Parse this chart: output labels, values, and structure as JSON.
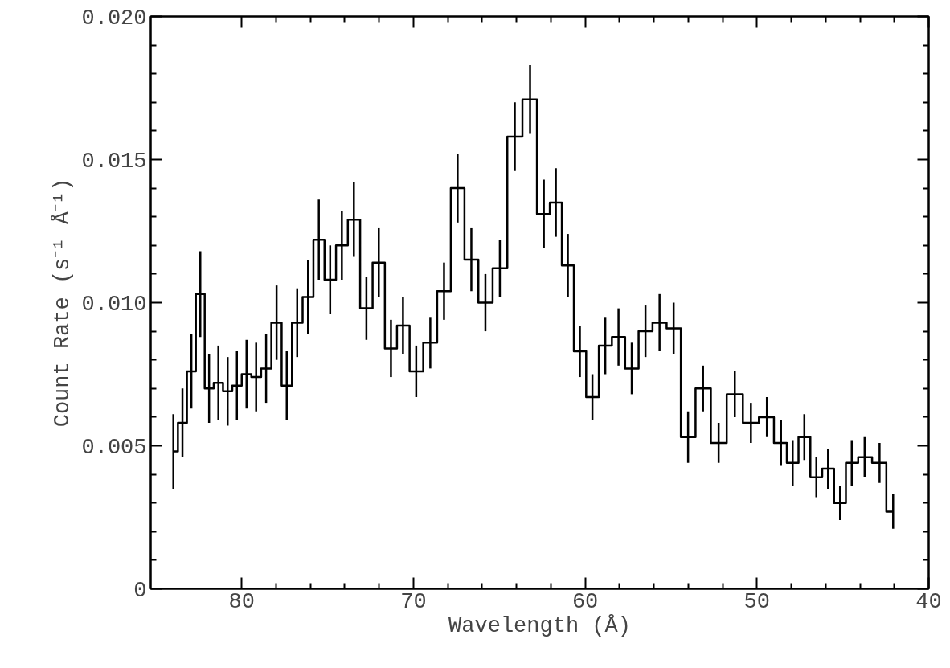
{
  "chart_data": {
    "type": "step",
    "xlabel": "Wavelength (Å)",
    "ylabel": "Count Rate (s⁻¹ Å⁻¹)",
    "x": [
      42.07,
      42.86,
      43.73,
      44.48,
      45.16,
      45.86,
      46.54,
      47.24,
      47.92,
      48.6,
      49.42,
      50.35,
      51.29,
      52.23,
      53.14,
      54.01,
      54.85,
      55.67,
      56.49,
      57.29,
      58.06,
      58.83,
      59.58,
      60.31,
      61.01,
      61.71,
      62.41,
      63.21,
      64.1,
      64.97,
      65.81,
      66.63,
      67.43,
      68.22,
      69.02,
      69.84,
      70.61,
      71.31,
      72.02,
      72.74,
      73.47,
      74.17,
      74.85,
      75.51,
      76.14,
      76.77,
      77.38,
      77.97,
      78.58,
      79.16,
      79.72,
      80.28,
      80.82,
      81.36,
      81.9,
      82.41,
      82.93,
      83.45,
      83.98
    ],
    "values": [
      0.0027,
      0.0044,
      0.0046,
      0.0044,
      0.003,
      0.0042,
      0.0039,
      0.0053,
      0.0044,
      0.0051,
      0.006,
      0.0058,
      0.0068,
      0.0051,
      0.007,
      0.0053,
      0.0091,
      0.0093,
      0.009,
      0.0077,
      0.0088,
      0.0085,
      0.0067,
      0.0083,
      0.0113,
      0.0135,
      0.0131,
      0.0171,
      0.0158,
      0.0112,
      0.01,
      0.0115,
      0.014,
      0.0104,
      0.0086,
      0.0076,
      0.0092,
      0.0084,
      0.0114,
      0.0098,
      0.0129,
      0.012,
      0.0108,
      0.0122,
      0.0102,
      0.0093,
      0.0071,
      0.0093,
      0.0077,
      0.0074,
      0.0075,
      0.0071,
      0.0069,
      0.0072,
      0.007,
      0.0103,
      0.0076,
      0.0058,
      0.0048
    ],
    "errors": [
      0.0006,
      0.0007,
      0.0007,
      0.0008,
      0.0006,
      0.0007,
      0.0007,
      0.0008,
      0.0008,
      0.0008,
      0.0007,
      0.0007,
      0.0008,
      0.0007,
      0.0008,
      0.0009,
      0.0009,
      0.001,
      0.0009,
      0.0009,
      0.001,
      0.001,
      0.0008,
      0.0009,
      0.0011,
      0.0012,
      0.0012,
      0.0012,
      0.0012,
      0.001,
      0.001,
      0.0011,
      0.0012,
      0.001,
      0.0009,
      0.0009,
      0.001,
      0.001,
      0.0012,
      0.0011,
      0.0013,
      0.0012,
      0.0012,
      0.0014,
      0.0013,
      0.0012,
      0.0012,
      0.0013,
      0.0012,
      0.0012,
      0.0012,
      0.0012,
      0.0012,
      0.0013,
      0.0012,
      0.0015,
      0.0013,
      0.0012,
      0.0013
    ],
    "color": "#000000",
    "xlim": [
      85.3,
      40
    ],
    "ylim": [
      0,
      0.02
    ],
    "xticks": [
      80,
      70,
      60,
      50,
      40
    ],
    "yticks": [
      0,
      0.005,
      {
        "value": 0.01,
        "label": "0.010"
      },
      {
        "value": 0.015,
        "label": "0.015"
      },
      {
        "value": 0.02,
        "label": "0.020"
      }
    ],
    "grid": false
  }
}
